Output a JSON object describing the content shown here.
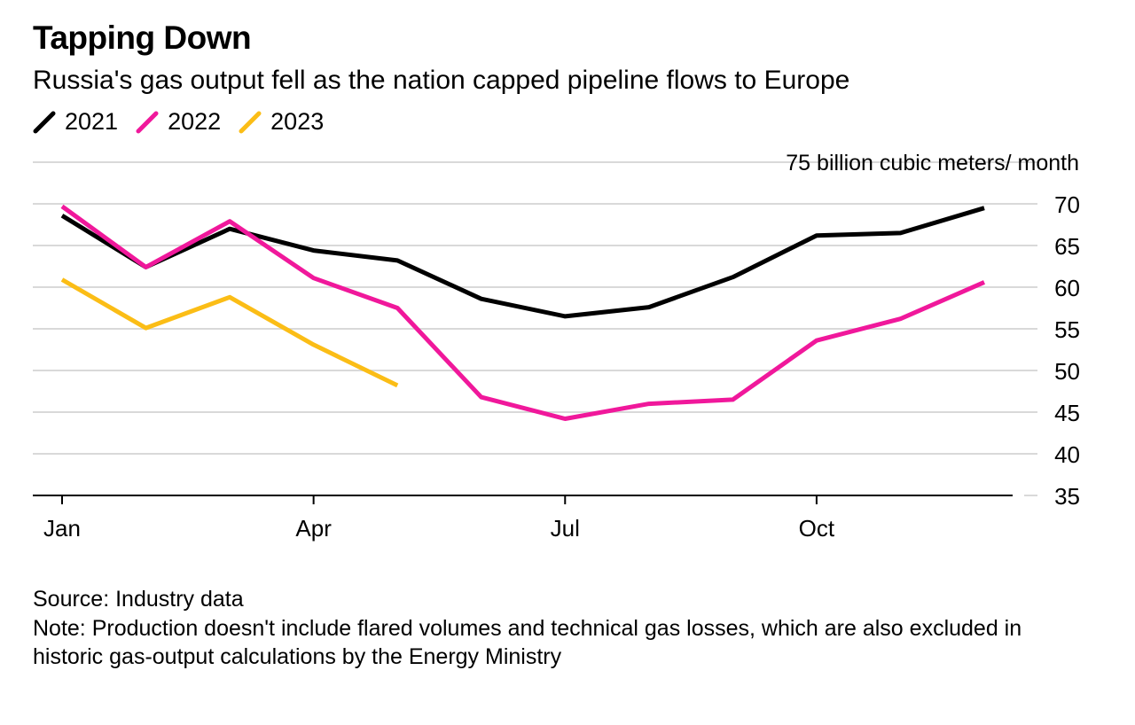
{
  "title": "Tapping Down",
  "subtitle": "Russia's gas output fell as the nation capped pipeline flows to Europe",
  "source": "Source: Industry data",
  "note": "Note: Production doesn't include flared volumes and technical gas losses, which are also excluded in historic gas-output calculations by the Energy Ministry",
  "chart_data": {
    "type": "line",
    "unit_label": "75 billion cubic meters/ month",
    "ylim": [
      35,
      75
    ],
    "yticks": [
      35,
      40,
      45,
      50,
      55,
      60,
      65,
      70
    ],
    "xlim": [
      1,
      12
    ],
    "xticks": [
      {
        "month": 1,
        "label": "Jan"
      },
      {
        "month": 4,
        "label": "Apr"
      },
      {
        "month": 7,
        "label": "Jul"
      },
      {
        "month": 10,
        "label": "Oct"
      }
    ],
    "grid": true,
    "legend_position": "top-left",
    "series": [
      {
        "name": "2021",
        "color": "#000000",
        "x": [
          1,
          2,
          3,
          4,
          5,
          6,
          7,
          8,
          9,
          10,
          11,
          12
        ],
        "values": [
          68.6,
          62.4,
          67.0,
          64.4,
          63.2,
          58.6,
          56.5,
          57.6,
          61.2,
          66.2,
          66.5,
          69.5
        ]
      },
      {
        "name": "2022",
        "color": "#f0189b",
        "x": [
          1,
          2,
          3,
          4,
          5,
          6,
          7,
          8,
          9,
          10,
          11,
          12
        ],
        "values": [
          69.7,
          62.4,
          67.9,
          61.1,
          57.5,
          46.8,
          44.2,
          46.0,
          46.5,
          53.6,
          56.2,
          60.6
        ]
      },
      {
        "name": "2023",
        "color": "#fbbd16",
        "x": [
          1,
          2,
          3,
          4,
          5
        ],
        "values": [
          60.9,
          55.1,
          58.8,
          53.1,
          48.2
        ]
      }
    ]
  }
}
